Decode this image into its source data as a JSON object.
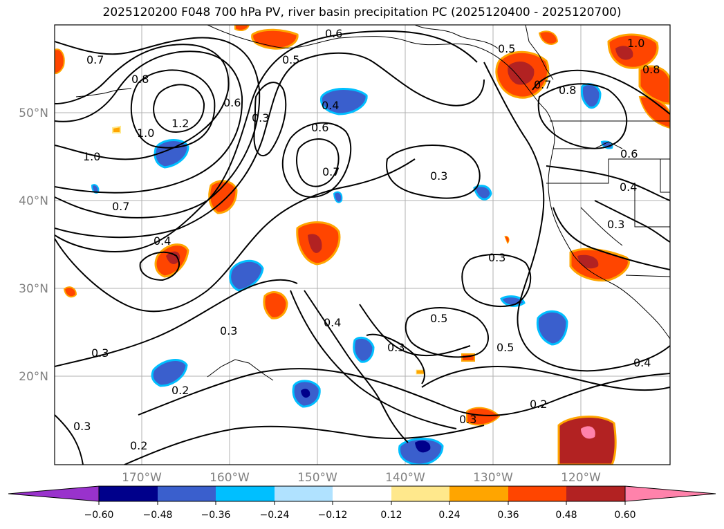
{
  "title": "2025120200 F048 700 hPa PV, river basin precipitation PC (2025120400 - 2025120700)",
  "latitude_labels": [
    "50°N",
    "40°N",
    "30°N",
    "20°N"
  ],
  "longitude_labels": [
    "170°W",
    "160°W",
    "150°W",
    "140°W",
    "130°W",
    "120°W"
  ],
  "contour_labels": [
    "0.6",
    "0.7",
    "0.5",
    "0.5",
    "0.8",
    "0.8",
    "1.0",
    "0.7",
    "0.8",
    "1.2",
    "0.6",
    "0.4",
    "0.3",
    "0.6",
    "1.0",
    "1.0",
    "0.7",
    "0.6",
    "0.3",
    "0.7",
    "0.4",
    "0.4",
    "0.3",
    "0.3",
    "0.3",
    "0.5",
    "0.4",
    "0.3",
    "0.5",
    "0.3",
    "0.2",
    "0.3",
    "0.2",
    "0.2",
    "0.3",
    "0.4"
  ],
  "colorbar": {
    "ticks": [
      "−0.60",
      "−0.48",
      "−0.36",
      "−0.24",
      "−0.12",
      "0.12",
      "0.24",
      "0.36",
      "0.48",
      "0.60"
    ],
    "colors": [
      "#9932cc",
      "#00008b",
      "#3a5fcd",
      "#00bfff",
      "#b0e2ff",
      "#ffffff",
      "#ffe88c",
      "#ffa500",
      "#ff4500",
      "#b22222",
      "#ff82ab"
    ]
  }
}
